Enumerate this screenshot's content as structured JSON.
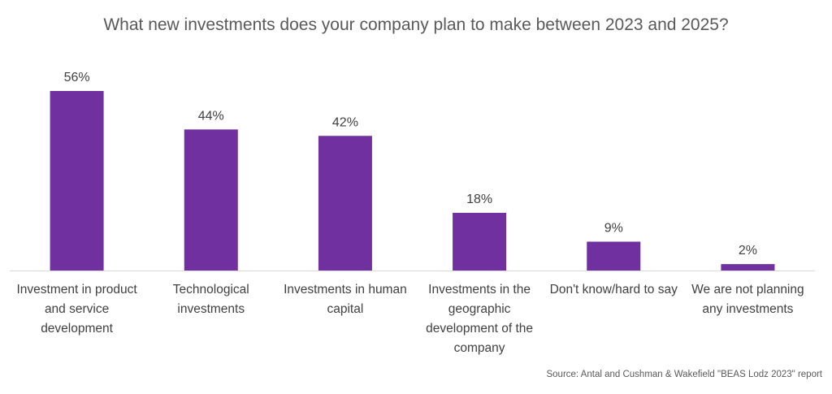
{
  "chart_data": {
    "type": "bar",
    "title": "What new investments does your company plan to make between 2023 and 2025?",
    "categories": [
      "Investment in product and service development",
      "Technological investments",
      "Investments in human capital",
      "Investments in the geographic development of the company",
      "Don't know/hard to say",
      "We are not planning any investments"
    ],
    "values": [
      56,
      44,
      42,
      18,
      9,
      2
    ],
    "data_labels": [
      "56%",
      "44%",
      "42%",
      "18%",
      "9%",
      "2%"
    ],
    "ylim": [
      0,
      56
    ],
    "grid": false,
    "legend": "none",
    "bar_color": "#7030A0",
    "axis_color": "#D9D9D9"
  },
  "source": "Source: Antal and Cushman & Wakefield \"BEAS Lodz 2023\" report"
}
